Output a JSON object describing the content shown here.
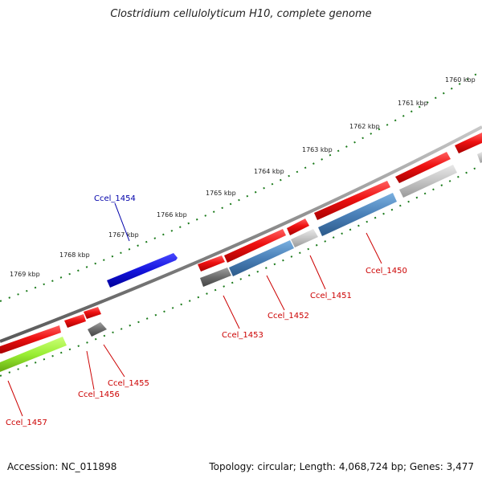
{
  "header": {
    "title": "Clostridium cellulolyticum H10, complete genome"
  },
  "footer": {
    "accession": "Accession: NC_011898",
    "summary": "Topology: circular; Length: 4,068,724 bp; Genes: 3,477"
  },
  "colors": {
    "forward_cds": "#ee1111",
    "reverse_cds": "#4a80b8",
    "reverse_grey": "#777777",
    "reverse_light": "#c4c4c4",
    "highlight": "#1414dd",
    "lime": "#99ee33",
    "backbone": "#888888",
    "tick": "#1a7a1a",
    "label_red": "#cc0000",
    "label_blue": "#0000aa"
  },
  "scale_labels": [
    "1760 kbp",
    "1761 kbp",
    "1762 kbp",
    "1763 kbp",
    "1764 kbp",
    "1765 kbp",
    "1766 kbp",
    "1767 kbp",
    "1768 kbp",
    "1769 kbp"
  ],
  "gene_labels": [
    {
      "id": "Ccel_1450",
      "text": "Ccel_1450",
      "color": "label_red"
    },
    {
      "id": "Ccel_1451",
      "text": "Ccel_1451",
      "color": "label_red"
    },
    {
      "id": "Ccel_1452",
      "text": "Ccel_1452",
      "color": "label_red"
    },
    {
      "id": "Ccel_1453",
      "text": "Ccel_1453",
      "color": "label_red"
    },
    {
      "id": "Ccel_1454",
      "text": "Ccel_1454",
      "color": "label_blue"
    },
    {
      "id": "Ccel_1455",
      "text": "Ccel_1455",
      "color": "label_red"
    },
    {
      "id": "Ccel_1456",
      "text": "Ccel_1456",
      "color": "label_red"
    },
    {
      "id": "Ccel_1457",
      "text": "Ccel_1457",
      "color": "label_red"
    }
  ]
}
